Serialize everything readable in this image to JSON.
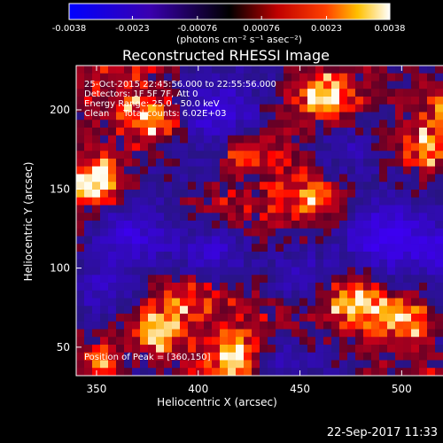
{
  "chart_data": {
    "type": "heatmap",
    "title": "Reconstructed RHESSI Image",
    "xlabel": "Heliocentric X (arcsec)",
    "ylabel": "Heliocentric Y (arcsec)",
    "xlim": [
      340,
      536
    ],
    "ylim": [
      32,
      228
    ],
    "x_ticks": [
      350,
      400,
      450,
      500
    ],
    "y_ticks": [
      50,
      100,
      150,
      200
    ],
    "colorbar": {
      "ticks": [
        "-0.0038",
        "-0.0023",
        "-0.00076",
        "0.00076",
        "0.0023",
        "0.0038"
      ],
      "tick_values": [
        -0.0038,
        -0.0023,
        -0.00076,
        0.00076,
        0.0023,
        0.0038
      ],
      "range": [
        -0.0038,
        0.0038
      ],
      "units_label": "(photons cm⁻² s⁻¹ asec⁻²)"
    },
    "annotations": [
      "25-Oct-2015 22:45:56.000 to 22:55:56.000",
      "Detectors: 1F 5F 7F, Att 0",
      "Energy Range: 25.0 - 50.0 keV",
      "Clean     Total counts: 6.02E+03"
    ],
    "peak_label": "Position of Peak = [360,150]",
    "peak_position": [
      360,
      150
    ],
    "grid": "off",
    "legend": "colorbar top"
  },
  "footer": {
    "timestamp": "22-Sep-2017 11:33"
  },
  "colors": {
    "negative_max": "#0000ff",
    "zero": "#000000",
    "positive_mid": "#ff2000",
    "positive_high": "#ffd000",
    "positive_max": "#ffffff"
  }
}
